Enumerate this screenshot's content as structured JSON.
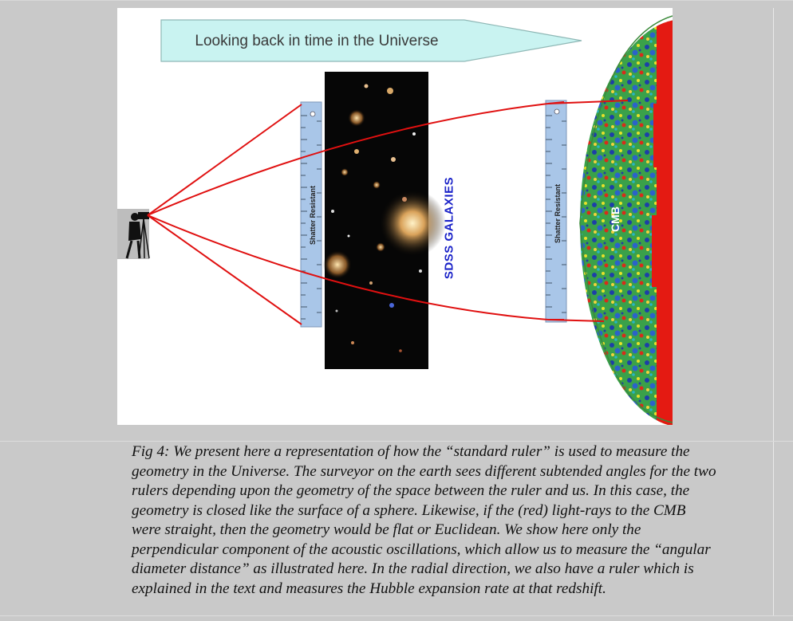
{
  "figure": {
    "arrow_label": "Looking back in time in the Universe",
    "galaxy_label": "SDSS GALAXIES",
    "cmb_label": "CMB",
    "ruler_text": "Shatter Resistant",
    "colors": {
      "arrow_fill": "#c9f3f1",
      "arrow_stroke": "#8fb8b6",
      "rays": "#e01010",
      "label_blue": "#1a22c8",
      "ruler": "#a9c6e8"
    },
    "icons": [
      "surveyor-camera-icon",
      "ruler-icon",
      "galaxy-field-image",
      "cmb-map-image"
    ]
  },
  "caption": {
    "lines": [
      "Fig 4: We present here a representation of how the “standard ruler” is used to measure the",
      "geometry in the Universe. The surveyor on the earth sees different subtended angles for the two",
      "rulers depending upon the geometry of the space between the ruler and us. In this case, the",
      "geometry is closed like the surface of a sphere. Likewise, if the (red) light-rays to the CMB",
      "were straight, then the geometry would be flat or Euclidean. We show here only the",
      "perpendicular component of the acoustic oscillations, which allow us to measure the “angular",
      "diameter distance” as illustrated here. In the radial direction, we also have a ruler which is",
      "explained in the text and measures the Hubble expansion rate at that redshift."
    ]
  }
}
